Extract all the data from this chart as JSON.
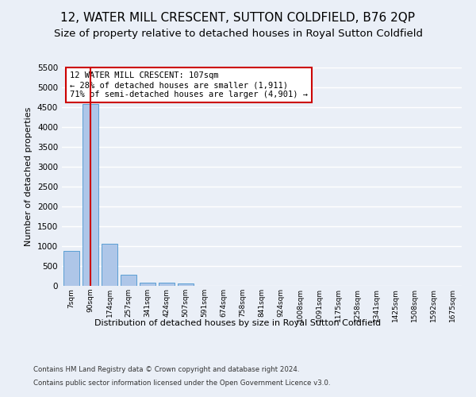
{
  "title": "12, WATER MILL CRESCENT, SUTTON COLDFIELD, B76 2QP",
  "subtitle": "Size of property relative to detached houses in Royal Sutton Coldfield",
  "xlabel": "Distribution of detached houses by size in Royal Sutton Coldfield",
  "ylabel": "Number of detached properties",
  "footer1": "Contains HM Land Registry data © Crown copyright and database right 2024.",
  "footer2": "Contains public sector information licensed under the Open Government Licence v3.0.",
  "categories": [
    "7sqm",
    "90sqm",
    "174sqm",
    "257sqm",
    "341sqm",
    "424sqm",
    "507sqm",
    "591sqm",
    "674sqm",
    "758sqm",
    "841sqm",
    "924sqm",
    "1008sqm",
    "1091sqm",
    "1175sqm",
    "1258sqm",
    "1341sqm",
    "1425sqm",
    "1508sqm",
    "1592sqm",
    "1675sqm"
  ],
  "values": [
    880,
    4580,
    1060,
    290,
    90,
    80,
    55,
    0,
    0,
    0,
    0,
    0,
    0,
    0,
    0,
    0,
    0,
    0,
    0,
    0,
    0
  ],
  "bar_color": "#aec6e8",
  "bar_edge_color": "#5a9fd4",
  "highlight_line_color": "#cc0000",
  "annotation_text": "12 WATER MILL CRESCENT: 107sqm\n← 28% of detached houses are smaller (1,911)\n71% of semi-detached houses are larger (4,901) →",
  "annotation_box_color": "#ffffff",
  "annotation_box_edge_color": "#cc0000",
  "ylim": [
    0,
    5500
  ],
  "yticks": [
    0,
    500,
    1000,
    1500,
    2000,
    2500,
    3000,
    3500,
    4000,
    4500,
    5000,
    5500
  ],
  "bg_color": "#eaeff7",
  "plot_bg_color": "#eaeff7",
  "grid_color": "#ffffff",
  "title_fontsize": 11,
  "subtitle_fontsize": 9.5
}
